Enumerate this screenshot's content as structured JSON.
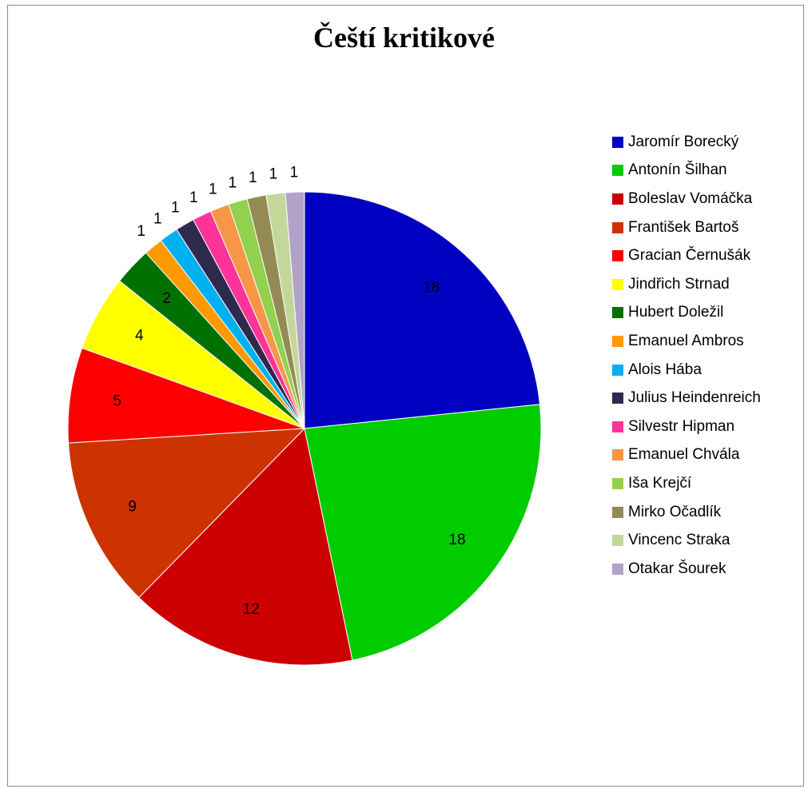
{
  "chart_data": {
    "type": "pie",
    "title": "Čeští kritikové",
    "legend_position": "right",
    "slices": [
      {
        "name": "Jaromír Borecký",
        "value": 18,
        "color": "#0000c0"
      },
      {
        "name": "Antonín Šilhan",
        "value": 18,
        "color": "#00cc00"
      },
      {
        "name": "Boleslav Vomáčka",
        "value": 12,
        "color": "#cc0000"
      },
      {
        "name": "František Bartoš",
        "value": 9,
        "color": "#cc3300"
      },
      {
        "name": "Gracian Černušák",
        "value": 5,
        "color": "#ff0000"
      },
      {
        "name": "Jindřich Strnad",
        "value": 4,
        "color": "#ffff00"
      },
      {
        "name": "Hubert Doležil",
        "value": 2,
        "color": "#007000"
      },
      {
        "name": "Emanuel Ambros",
        "value": 1,
        "color": "#ff9900"
      },
      {
        "name": "Alois Hába",
        "value": 1,
        "color": "#00b0f0"
      },
      {
        "name": "Julius Heindenreich",
        "value": 1,
        "color": "#2e2a4e"
      },
      {
        "name": "Silvestr Hipman",
        "value": 1,
        "color": "#ff3399"
      },
      {
        "name": "Emanuel Chvála",
        "value": 1,
        "color": "#f79646"
      },
      {
        "name": "Iša Krejčí",
        "value": 1,
        "color": "#92d050"
      },
      {
        "name": "Mirko Očadlík",
        "value": 1,
        "color": "#948a54"
      },
      {
        "name": "Vincenc Straka",
        "value": 1,
        "color": "#c4d79b"
      },
      {
        "name": "Otakar Šourek",
        "value": 1,
        "color": "#b3a2c7"
      }
    ]
  }
}
